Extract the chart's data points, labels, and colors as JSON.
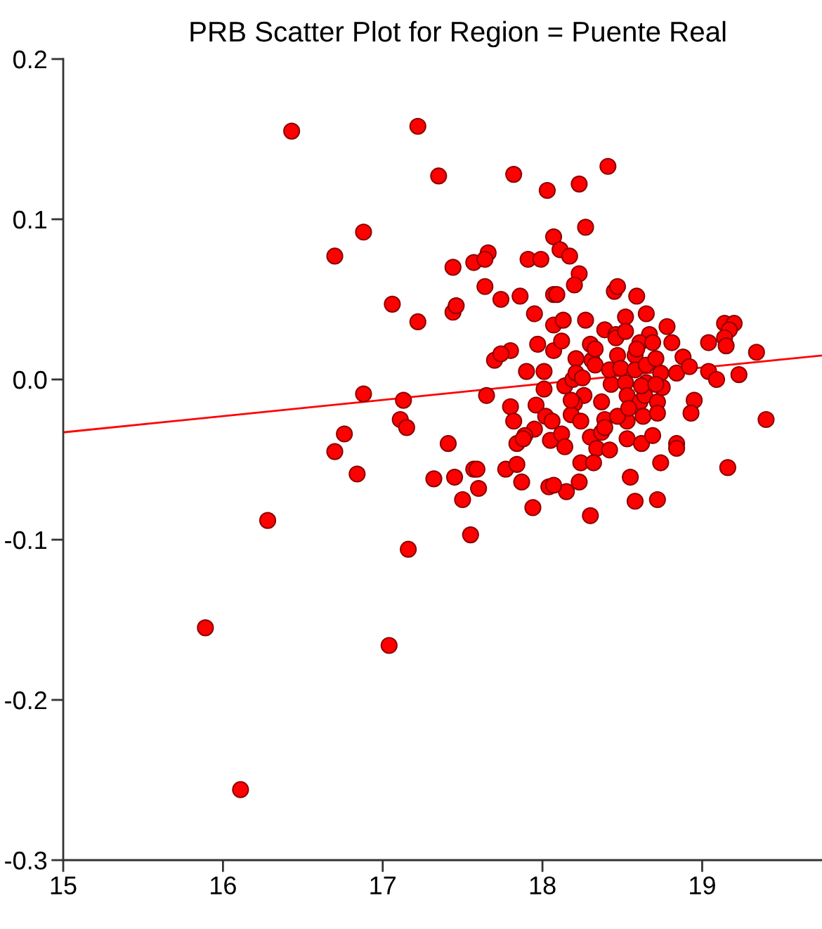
{
  "chart_data": {
    "type": "scatter",
    "title": "PRB Scatter Plot for Region = Puente Real",
    "xlim": [
      15,
      19.75
    ],
    "ylim": [
      -0.3,
      0.2
    ],
    "xticks": [
      15,
      16,
      17,
      18,
      19
    ],
    "yticks": [
      {
        "value": -0.3,
        "label": "-0.3"
      },
      {
        "value": -0.2,
        "label": "-0.2"
      },
      {
        "value": -0.1,
        "label": "-0.1"
      },
      {
        "value": 0,
        "label": "0.0"
      },
      {
        "value": 0.1,
        "label": "0.1"
      },
      {
        "value": 0.2,
        "label": "0.2"
      }
    ],
    "series": [
      {
        "color": "#ff0000",
        "marker": "circle",
        "x": [
          16.43,
          17.22,
          15.89,
          16.11,
          17.04,
          16.28,
          16.88,
          17.13,
          17.11,
          17.15,
          16.76,
          16.7,
          16.84,
          17.41,
          17.32,
          17.45,
          17.57,
          17.59,
          17.5,
          17.6,
          17.55,
          17.16,
          17.65,
          17.7,
          17.35,
          16.88,
          16.7,
          17.44,
          17.57,
          17.66,
          17.64,
          17.64,
          17.06,
          17.22,
          17.44,
          17.46,
          17.74,
          17.82,
          18.03,
          18.23,
          18.41,
          18.27,
          18.07,
          18.11,
          18.17,
          18.23,
          18.2,
          17.91,
          17.99,
          17.86,
          18.07,
          18.09,
          17.95,
          18.07,
          18.13,
          18.27,
          18.45,
          18.47,
          18.59,
          18.52,
          18.65,
          18.78,
          18.39,
          18.46,
          18.67,
          18.61,
          18.81,
          18.3,
          18.07,
          18.12,
          17.97,
          17.8,
          17.74,
          18.21,
          18.58,
          18.88,
          19.04,
          19.14,
          19.2,
          19.17,
          19.14,
          19.15,
          19.34,
          17.9,
          18.01,
          18.14,
          18.01,
          17.8,
          17.96,
          19.04,
          19.09,
          19.23,
          18.84,
          18.92,
          18.74,
          18.95,
          18.93,
          19.4,
          17.82,
          18.19,
          18.26,
          18.2,
          18.18,
          18.24,
          18.02,
          18.06,
          17.95,
          17.89,
          17.84,
          18.05,
          18.12,
          18.14,
          18.3,
          18.34,
          18.42,
          18.39,
          18.37,
          18.43,
          18.52,
          18.53,
          18.61,
          18.64,
          18.72,
          18.75,
          18.65,
          18.53,
          18.63,
          18.72,
          18.53,
          18.62,
          18.69,
          18.37,
          18.47,
          18.84,
          18.84,
          18.74,
          18.55,
          18.58,
          18.72,
          19.16,
          18.24,
          18.32,
          18.23,
          18.15,
          18.04,
          18.07,
          18.3,
          17.94,
          17.87,
          17.77,
          17.84,
          18.47,
          18.31,
          18.33,
          18.46,
          18.52,
          18.59,
          18.69,
          18.21,
          18.33,
          18.42,
          18.49,
          18.58,
          18.65,
          18.71,
          18.62,
          18.71,
          18.25,
          18.18,
          18.54,
          18.39,
          17.88
        ],
        "values": [
          0.155,
          0.158,
          -0.155,
          -0.256,
          -0.166,
          -0.088,
          -0.009,
          -0.013,
          -0.025,
          -0.03,
          -0.034,
          -0.045,
          -0.059,
          -0.04,
          -0.062,
          -0.061,
          -0.056,
          -0.056,
          -0.075,
          -0.068,
          -0.097,
          -0.106,
          -0.01,
          0.012,
          0.127,
          0.092,
          0.077,
          0.07,
          0.073,
          0.079,
          0.075,
          0.058,
          0.047,
          0.036,
          0.042,
          0.046,
          0.05,
          0.128,
          0.118,
          0.122,
          0.133,
          0.095,
          0.089,
          0.081,
          0.077,
          0.066,
          0.059,
          0.075,
          0.075,
          0.052,
          0.053,
          0.053,
          0.041,
          0.034,
          0.037,
          0.037,
          0.055,
          0.058,
          0.052,
          0.039,
          0.041,
          0.033,
          0.031,
          0.028,
          0.028,
          0.023,
          0.023,
          0.022,
          0.018,
          0.024,
          0.022,
          0.018,
          0.016,
          0.013,
          0.015,
          0.014,
          0.023,
          0.035,
          0.035,
          0.031,
          0.026,
          0.021,
          0.017,
          0.005,
          0.005,
          -0.004,
          -0.006,
          -0.017,
          -0.016,
          0.005,
          0.0,
          0.003,
          0.004,
          0.008,
          0.004,
          -0.013,
          -0.021,
          -0.025,
          -0.026,
          0.0,
          -0.01,
          -0.015,
          -0.022,
          -0.026,
          -0.023,
          -0.026,
          -0.031,
          -0.035,
          -0.04,
          -0.038,
          -0.034,
          -0.042,
          -0.036,
          -0.043,
          -0.044,
          -0.025,
          -0.014,
          -0.003,
          -0.002,
          -0.01,
          -0.014,
          -0.01,
          -0.014,
          -0.005,
          -0.002,
          -0.026,
          -0.023,
          -0.021,
          -0.037,
          -0.04,
          -0.035,
          -0.033,
          -0.023,
          -0.04,
          -0.043,
          -0.052,
          -0.061,
          -0.076,
          -0.075,
          -0.055,
          -0.052,
          -0.052,
          -0.064,
          -0.07,
          -0.067,
          -0.066,
          -0.085,
          -0.08,
          -0.064,
          -0.056,
          -0.053,
          0.015,
          0.012,
          0.019,
          0.026,
          0.03,
          0.019,
          0.023,
          0.004,
          0.009,
          0.006,
          0.007,
          0.006,
          0.009,
          0.013,
          -0.004,
          -0.003,
          0.001,
          -0.013,
          -0.018,
          -0.03,
          -0.037
        ]
      },
      {
        "type": "line",
        "color": "#ff0000",
        "marker": "none",
        "line_style": "solid",
        "x": [
          15,
          19.75
        ],
        "values": [
          -0.033,
          0.015
        ]
      }
    ]
  }
}
